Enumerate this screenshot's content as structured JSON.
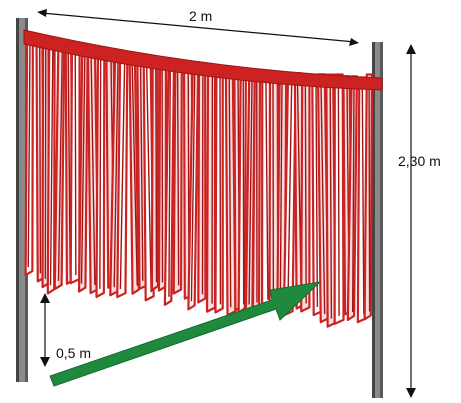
{
  "dimensions": {
    "width_label": "2 m",
    "height_label": "2,30 m",
    "clearance_label": "0,5 m"
  },
  "colors": {
    "strip": "#cc2222",
    "strip_dark": "#a01414",
    "strip_light": "#e06a6a",
    "post": "#7a7a7a",
    "post_dark": "#444444",
    "arrow": "#1f8a3d",
    "dimension_line": "#111111"
  },
  "icons": {
    "vehicle_direction": "green-direction-arrow-icon"
  }
}
